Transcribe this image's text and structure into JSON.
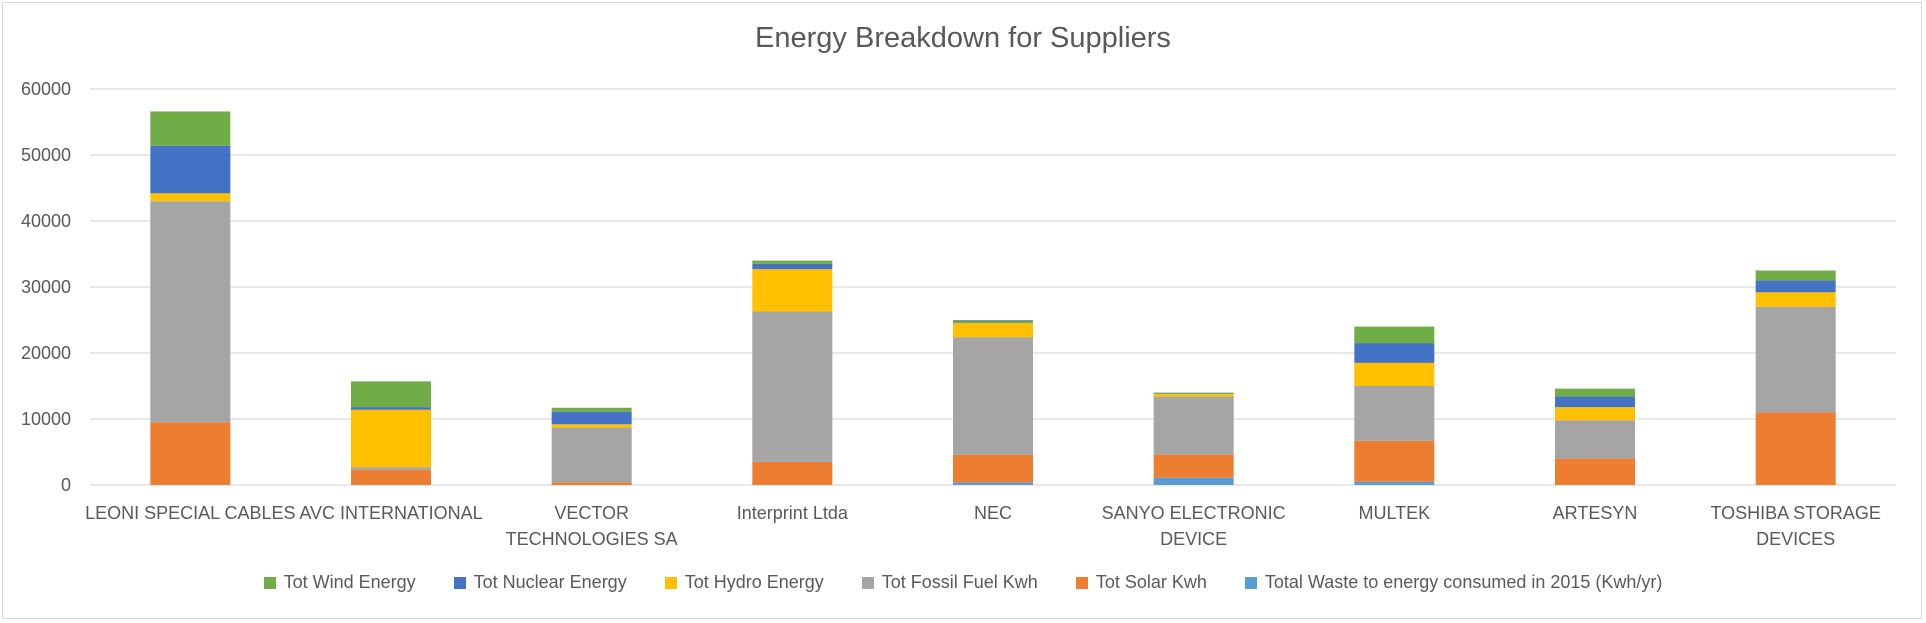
{
  "chart_data": {
    "type": "bar",
    "stacked": true,
    "title": "Energy Breakdown for Suppliers",
    "xlabel": "",
    "ylabel": "",
    "ylim": [
      0,
      60000
    ],
    "yticks": [
      0,
      10000,
      20000,
      30000,
      40000,
      50000,
      60000
    ],
    "grid": true,
    "legend_position": "bottom",
    "categories": [
      [
        "LEONI SPECIAL CABLES"
      ],
      [
        "AVC INTERNATIONAL"
      ],
      [
        "VECTOR",
        "TECHNOLOGIES SA"
      ],
      [
        "Interprint Ltda"
      ],
      [
        "NEC"
      ],
      [
        "SANYO ELECTRONIC",
        "DEVICE"
      ],
      [
        "MULTEK"
      ],
      [
        "ARTESYN"
      ],
      [
        "TOSHIBA STORAGE",
        "DEVICES"
      ]
    ],
    "series": [
      {
        "name": "Total Waste to energy consumed in 2015 (Kwh/yr)",
        "color": "#5b9bd5",
        "values": [
          0,
          0,
          0,
          0,
          400,
          1100,
          500,
          0,
          0
        ]
      },
      {
        "name": "Tot Solar Kwh",
        "color": "#ed7d31",
        "values": [
          9500,
          2300,
          400,
          3500,
          4200,
          3500,
          6200,
          4000,
          11000
        ]
      },
      {
        "name": "Tot Fossil Fuel Kwh",
        "color": "#a5a5a5",
        "values": [
          33500,
          400,
          8300,
          22800,
          17800,
          8800,
          8300,
          5800,
          16000
        ]
      },
      {
        "name": "Tot Hydro Energy",
        "color": "#ffc000",
        "values": [
          1200,
          8700,
          500,
          6400,
          2200,
          400,
          3500,
          2000,
          2200
        ]
      },
      {
        "name": "Tot Nuclear Energy",
        "color": "#4472c4",
        "values": [
          7200,
          400,
          1900,
          800,
          200,
          100,
          3000,
          1600,
          1800
        ]
      },
      {
        "name": "Tot Wind Energy",
        "color": "#70ad47",
        "values": [
          5200,
          3900,
          600,
          500,
          200,
          100,
          2500,
          1200,
          1500
        ]
      }
    ],
    "legend_order": [
      "Tot Wind Energy",
      "Tot Nuclear Energy",
      "Tot Hydro Energy",
      "Tot Fossil Fuel Kwh",
      "Tot Solar Kwh",
      "Total Waste to energy consumed in 2015 (Kwh/yr)"
    ]
  }
}
